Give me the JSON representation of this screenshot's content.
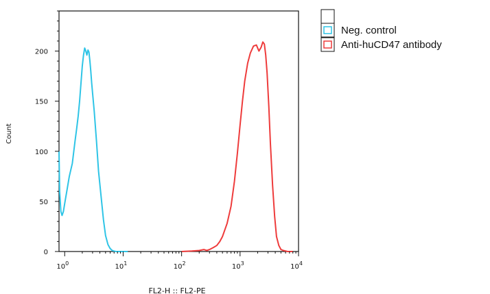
{
  "chart_data": {
    "type": "line",
    "title": "",
    "xlabel": "FL2-H :: FL2-PE",
    "ylabel": "Count",
    "x_scale": "log",
    "xlim": [
      0.8,
      10000
    ],
    "ylim": [
      0,
      240
    ],
    "x_ticks": [
      {
        "value": 1,
        "base": "10",
        "exp": "0"
      },
      {
        "value": 10,
        "base": "10",
        "exp": "1"
      },
      {
        "value": 100,
        "base": "10",
        "exp": "2"
      },
      {
        "value": 1000,
        "base": "10",
        "exp": "3"
      },
      {
        "value": 10000,
        "base": "10",
        "exp": "4"
      }
    ],
    "y_ticks": [
      0,
      50,
      100,
      150,
      200
    ],
    "grid": false,
    "legend_position": "top-right, outside plot",
    "legend_header": "",
    "series": [
      {
        "name": "Neg. control",
        "color": "#2ec4e6",
        "x": [
          0.8,
          0.82,
          0.86,
          0.9,
          0.95,
          1.0,
          1.1,
          1.2,
          1.35,
          1.5,
          1.6,
          1.7,
          1.8,
          1.9,
          2.0,
          2.1,
          2.2,
          2.3,
          2.4,
          2.5,
          2.6,
          2.7,
          2.8,
          2.9,
          3.0,
          3.2,
          3.5,
          3.8,
          4.2,
          4.6,
          5.0,
          5.5,
          6.0,
          6.5,
          7.0,
          7.5,
          8.0,
          9.0,
          10.0,
          12.0
        ],
        "y": [
          100,
          60,
          40,
          36,
          40,
          48,
          62,
          75,
          88,
          110,
          122,
          135,
          150,
          168,
          185,
          196,
          203,
          200,
          196,
          201,
          199,
          190,
          180,
          168,
          158,
          140,
          110,
          80,
          55,
          32,
          16,
          7,
          3,
          1,
          0.5,
          0,
          0,
          0,
          0,
          0
        ]
      },
      {
        "name": "Anti-huCD47 antibody",
        "color": "#ee3b3b",
        "x": [
          100,
          150,
          200,
          240,
          270,
          300,
          350,
          400,
          450,
          500,
          600,
          700,
          800,
          900,
          1000,
          1100,
          1200,
          1350,
          1500,
          1700,
          1900,
          2100,
          2300,
          2450,
          2600,
          2750,
          2900,
          3100,
          3300,
          3600,
          3900,
          4200,
          4600,
          5000,
          5500,
          6500,
          8000
        ],
        "y": [
          0,
          0.5,
          1,
          2,
          1,
          2,
          4,
          6,
          10,
          15,
          28,
          45,
          70,
          98,
          126,
          150,
          170,
          188,
          198,
          205,
          206,
          200,
          204,
          209,
          207,
          196,
          178,
          145,
          108,
          66,
          35,
          15,
          6,
          2,
          1,
          0,
          0
        ]
      }
    ]
  }
}
